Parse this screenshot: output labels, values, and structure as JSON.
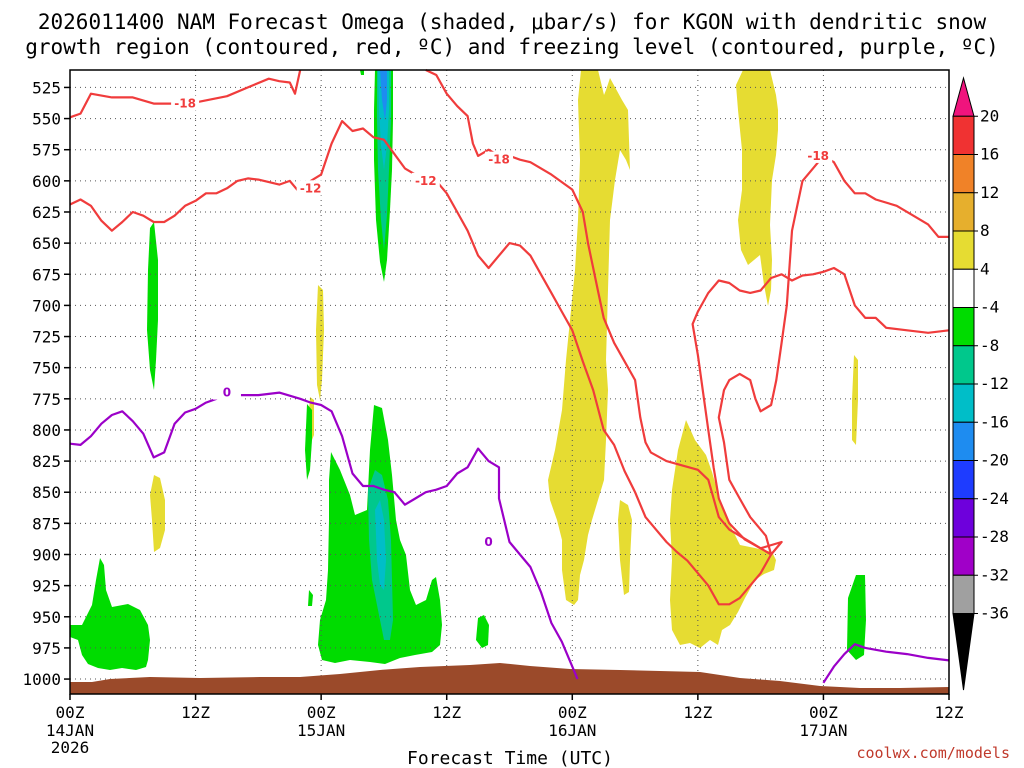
{
  "chart_data": {
    "type": "time-height contour",
    "title_line1": "2026011400 NAM Forecast Omega (shaded, μbar/s) for KGON with dendritic snow",
    "title_line2": "growth region (contoured, red, ºC) and freezing level (contoured, purple, ºC)",
    "xlabel": "Forecast Time (UTC)",
    "credit": "coolwx.com/models",
    "pressure_levels": [
      525,
      550,
      575,
      600,
      625,
      650,
      675,
      700,
      725,
      750,
      775,
      800,
      825,
      850,
      875,
      900,
      925,
      950,
      975,
      1000
    ],
    "ylim_hpa": [
      511,
      1012
    ],
    "xlim_hours": [
      0,
      84
    ],
    "x_ticks": [
      {
        "hour": 0,
        "label": "00Z",
        "day": "14JAN",
        "year": "2026"
      },
      {
        "hour": 12,
        "label": "12Z",
        "day": "",
        "year": ""
      },
      {
        "hour": 24,
        "label": "00Z",
        "day": "15JAN",
        "year": ""
      },
      {
        "hour": 36,
        "label": "12Z",
        "day": "",
        "year": ""
      },
      {
        "hour": 48,
        "label": "00Z",
        "day": "16JAN",
        "year": ""
      },
      {
        "hour": 60,
        "label": "12Z",
        "day": "",
        "year": ""
      },
      {
        "hour": 72,
        "label": "00Z",
        "day": "17JAN",
        "year": ""
      },
      {
        "hour": 84,
        "label": "12Z",
        "day": "",
        "year": ""
      }
    ],
    "colorbar": {
      "labels": [
        "20",
        "16",
        "12",
        "8",
        "4",
        "-4",
        "-8",
        "-12",
        "-16",
        "-20",
        "-24",
        "-28",
        "-32",
        "-36"
      ],
      "colors": [
        "#f0147d",
        "#f03232",
        "#f08228",
        "#e6af2d",
        "#e6dc32",
        "#ffffff",
        "#00dc00",
        "#00c88c",
        "#00bec8",
        "#1e8cf0",
        "#1e3cff",
        "#6e00dc",
        "#a000c8",
        "#a0a0a0",
        "#000000"
      ]
    },
    "series": [
      {
        "name": "-18",
        "kind": "dgz",
        "color": "#f03c3c",
        "labels": [
          {
            "text": "-18",
            "hour": 11,
            "hpa": 538
          }
        ],
        "points": [
          [
            0,
            549
          ],
          [
            1,
            546
          ],
          [
            2,
            530
          ],
          [
            4,
            533
          ],
          [
            6,
            533
          ],
          [
            8,
            538
          ],
          [
            10,
            538
          ],
          [
            12,
            537
          ],
          [
            15,
            532
          ],
          [
            17,
            525
          ],
          [
            19,
            518
          ],
          [
            20,
            520
          ],
          [
            21,
            521
          ],
          [
            21.5,
            530
          ],
          [
            22,
            511
          ]
        ]
      },
      {
        "name": "-18",
        "kind": "dgz",
        "color": "#f03c3c",
        "labels": [
          {
            "text": "-18",
            "hour": 41,
            "hpa": 583
          },
          {
            "text": "-18",
            "hour": 71.5,
            "hpa": 580
          }
        ],
        "points": [
          [
            34,
            511
          ],
          [
            35,
            515
          ],
          [
            36,
            530
          ],
          [
            37,
            540
          ],
          [
            38,
            548
          ],
          [
            38.5,
            570
          ],
          [
            39,
            580
          ],
          [
            40,
            575
          ],
          [
            41,
            580
          ],
          [
            42,
            580
          ],
          [
            43,
            583
          ],
          [
            44,
            585
          ],
          [
            46,
            595
          ],
          [
            48,
            607
          ],
          [
            49,
            625
          ],
          [
            49.5,
            650
          ],
          [
            50,
            670
          ],
          [
            50.5,
            690
          ],
          [
            51,
            710
          ],
          [
            52,
            730
          ],
          [
            53,
            745
          ],
          [
            54,
            760
          ],
          [
            54.5,
            790
          ],
          [
            55,
            810
          ],
          [
            55.5,
            818
          ],
          [
            57,
            825
          ],
          [
            60,
            832
          ],
          [
            61,
            840
          ],
          [
            61.5,
            855
          ],
          [
            62,
            870
          ],
          [
            63,
            880
          ],
          [
            65,
            890
          ],
          [
            66,
            895
          ],
          [
            67,
            900
          ],
          [
            66.5,
            885
          ],
          [
            65,
            870
          ],
          [
            64,
            855
          ],
          [
            63,
            840
          ],
          [
            62.5,
            810
          ],
          [
            62,
            790
          ],
          [
            62.5,
            768
          ],
          [
            63,
            760
          ],
          [
            64,
            755
          ],
          [
            65,
            760
          ],
          [
            65.5,
            775
          ],
          [
            66,
            785
          ],
          [
            67,
            780
          ],
          [
            67.5,
            760
          ],
          [
            68,
            730
          ],
          [
            68.5,
            700
          ],
          [
            69,
            640
          ],
          [
            70,
            600
          ],
          [
            71,
            590
          ],
          [
            72,
            580
          ],
          [
            73,
            585
          ],
          [
            74,
            600
          ],
          [
            75,
            610
          ],
          [
            76,
            610
          ],
          [
            77,
            615
          ],
          [
            79,
            620
          ],
          [
            81,
            630
          ],
          [
            82,
            635
          ],
          [
            83,
            645
          ],
          [
            84,
            645
          ]
        ]
      },
      {
        "name": "-12",
        "kind": "dgz",
        "color": "#f03c3c",
        "labels": [
          {
            "text": "-12",
            "hour": 23,
            "hpa": 606
          },
          {
            "text": "-12",
            "hour": 34,
            "hpa": 600
          }
        ],
        "points": [
          [
            0,
            619
          ],
          [
            1,
            615
          ],
          [
            2,
            620
          ],
          [
            3,
            632
          ],
          [
            4,
            640
          ],
          [
            5,
            633
          ],
          [
            6,
            625
          ],
          [
            7,
            628
          ],
          [
            8,
            633
          ],
          [
            9,
            633
          ],
          [
            10,
            628
          ],
          [
            11,
            620
          ],
          [
            12,
            616
          ],
          [
            13,
            610
          ],
          [
            14,
            610
          ],
          [
            15,
            606
          ],
          [
            16,
            600
          ],
          [
            17,
            598
          ],
          [
            18,
            599
          ],
          [
            20,
            603
          ],
          [
            21,
            600
          ],
          [
            22,
            610
          ],
          [
            23,
            600
          ],
          [
            24,
            595
          ],
          [
            25,
            570
          ],
          [
            26,
            552
          ],
          [
            27,
            560
          ],
          [
            28,
            558
          ],
          [
            29,
            565
          ],
          [
            30,
            567
          ],
          [
            32,
            590
          ],
          [
            33,
            595
          ],
          [
            35,
            600
          ],
          [
            36,
            610
          ],
          [
            37,
            625
          ],
          [
            38,
            640
          ],
          [
            39,
            660
          ],
          [
            40,
            670
          ],
          [
            41,
            660
          ],
          [
            42,
            650
          ],
          [
            43,
            652
          ],
          [
            44,
            660
          ],
          [
            45,
            675
          ],
          [
            46,
            690
          ],
          [
            47,
            705
          ],
          [
            48,
            720
          ],
          [
            49,
            745
          ],
          [
            50,
            768
          ],
          [
            51,
            800
          ],
          [
            52,
            812
          ],
          [
            53,
            833
          ],
          [
            54,
            850
          ],
          [
            55,
            870
          ],
          [
            56,
            880
          ],
          [
            57,
            890
          ],
          [
            58,
            898
          ],
          [
            59,
            905
          ],
          [
            60,
            915
          ],
          [
            61,
            925
          ],
          [
            62,
            940
          ],
          [
            63,
            940
          ],
          [
            64,
            935
          ],
          [
            65,
            925
          ],
          [
            66,
            915
          ],
          [
            67,
            900
          ],
          [
            68,
            890
          ],
          [
            66,
            895
          ]
        ],
        "points2": [
          [
            66,
            895
          ],
          [
            64.5,
            888
          ],
          [
            63,
            875
          ],
          [
            62,
            855
          ],
          [
            61.5,
            830
          ],
          [
            61,
            800
          ],
          [
            60.5,
            770
          ],
          [
            60,
            740
          ],
          [
            59.5,
            715
          ],
          [
            60,
            705
          ],
          [
            61,
            690
          ],
          [
            62,
            680
          ],
          [
            63,
            682
          ],
          [
            64,
            688
          ],
          [
            65,
            690
          ],
          [
            66,
            688
          ],
          [
            67,
            678
          ],
          [
            68,
            675
          ],
          [
            69,
            680
          ],
          [
            70,
            676
          ],
          [
            71,
            675
          ],
          [
            72,
            673
          ],
          [
            73,
            670
          ],
          [
            74,
            675
          ],
          [
            75,
            700
          ],
          [
            76,
            710
          ],
          [
            77,
            710
          ],
          [
            78,
            718
          ],
          [
            80,
            720
          ],
          [
            82,
            722
          ],
          [
            84,
            720
          ]
        ]
      },
      {
        "name": "0",
        "kind": "freezing",
        "color": "#9b00c8",
        "labels": [
          {
            "text": "0",
            "hour": 15,
            "hpa": 770
          },
          {
            "text": "0",
            "hour": 40,
            "hpa": 890
          }
        ],
        "points": [
          [
            0,
            811
          ],
          [
            1,
            812
          ],
          [
            2,
            805
          ],
          [
            3,
            795
          ],
          [
            4,
            788
          ],
          [
            5,
            785
          ],
          [
            6,
            793
          ],
          [
            7,
            803
          ],
          [
            8,
            822
          ],
          [
            9,
            818
          ],
          [
            10,
            795
          ],
          [
            11,
            786
          ],
          [
            12,
            783
          ],
          [
            13,
            778
          ],
          [
            14,
            775
          ],
          [
            15,
            770
          ],
          [
            16,
            772
          ],
          [
            18,
            772
          ],
          [
            20,
            770
          ],
          [
            22,
            775
          ],
          [
            23,
            778
          ],
          [
            24,
            780
          ],
          [
            25,
            785
          ],
          [
            26,
            805
          ],
          [
            27,
            835
          ],
          [
            28,
            845
          ],
          [
            29,
            845
          ],
          [
            30,
            848
          ],
          [
            31,
            850
          ],
          [
            32,
            860
          ],
          [
            33,
            855
          ],
          [
            34,
            850
          ],
          [
            35,
            848
          ],
          [
            36,
            845
          ],
          [
            37,
            835
          ],
          [
            38,
            830
          ],
          [
            39,
            815
          ],
          [
            40,
            825
          ],
          [
            41,
            830
          ],
          [
            41,
            855
          ],
          [
            42,
            890
          ],
          [
            44,
            910
          ],
          [
            45,
            930
          ],
          [
            46,
            955
          ],
          [
            47,
            970
          ],
          [
            48,
            990
          ],
          [
            48.5,
            1000
          ]
        ]
      },
      {
        "name": "0",
        "kind": "freezing",
        "color": "#9b00c8",
        "labels": [],
        "points": [
          [
            72,
            1003
          ],
          [
            73,
            990
          ],
          [
            74,
            980
          ],
          [
            75,
            972
          ],
          [
            76,
            975
          ],
          [
            78,
            978
          ],
          [
            80,
            980
          ],
          [
            82,
            983
          ],
          [
            84,
            985
          ]
        ]
      }
    ]
  }
}
